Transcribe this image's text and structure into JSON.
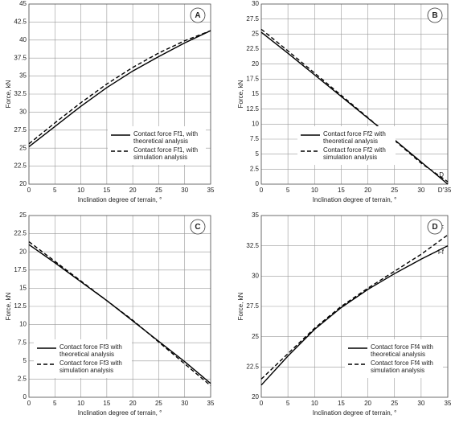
{
  "chart_data": [
    {
      "type": "line",
      "label": "A",
      "x_label": "Inclination degree of terrain, °",
      "y_label": "Force, kN",
      "x": [
        0,
        5,
        10,
        15,
        20,
        25,
        30,
        35
      ],
      "xlim": [
        0,
        35
      ],
      "xticks": [
        0,
        5,
        10,
        15,
        20,
        25,
        30,
        35
      ],
      "ylim": [
        20,
        45
      ],
      "yticks": [
        20,
        22.5,
        25,
        27.5,
        30,
        32.5,
        35,
        37.5,
        40,
        42.5,
        45
      ],
      "grid": true,
      "legend_loc": "lower right",
      "series": [
        {
          "name": "Contact force Ff1, with theoretical analysis",
          "color": "#000000",
          "linestyle": "solid",
          "values": [
            25.2,
            28.0,
            30.8,
            33.4,
            35.7,
            37.7,
            39.6,
            41.3
          ]
        },
        {
          "name": "Contact force Ff1, with simulation analysis",
          "color": "#000000",
          "linestyle": "dashed",
          "values": [
            25.6,
            28.5,
            31.3,
            33.9,
            36.2,
            38.2,
            39.9,
            41.3
          ]
        }
      ],
      "annotations": []
    },
    {
      "type": "line",
      "label": "B",
      "x_label": "Inclination degree of terrain, °",
      "y_label": "Force, kN",
      "x": [
        0,
        5,
        10,
        15,
        20,
        25,
        30,
        35
      ],
      "xlim": [
        0,
        35
      ],
      "xticks": [
        0,
        5,
        10,
        15,
        20,
        25,
        30,
        35
      ],
      "ylim": [
        0,
        30
      ],
      "yticks": [
        0,
        2.5,
        5,
        7.5,
        10,
        12.5,
        15,
        17.5,
        20,
        22.5,
        25,
        27.5,
        30
      ],
      "grid": true,
      "legend_loc": "lower center",
      "series": [
        {
          "name": "Contact force Ff2 with theoretical analysis",
          "color": "#000000",
          "linestyle": "solid",
          "values": [
            25.3,
            21.8,
            18.2,
            14.6,
            11.0,
            7.4,
            3.7,
            0
          ]
        },
        {
          "name": "Contact force Ff2 with simulation analysis",
          "color": "#000000",
          "linestyle": "dashed",
          "values": [
            25.8,
            22.2,
            18.5,
            14.8,
            11.1,
            7.3,
            3.5,
            0.4
          ]
        }
      ],
      "annotations": [
        "D′",
        "D"
      ]
    },
    {
      "type": "line",
      "label": "C",
      "x_label": "Inclination degree of terrain, °",
      "y_label": "Force, kN",
      "x": [
        0,
        5,
        10,
        15,
        20,
        25,
        30,
        35
      ],
      "xlim": [
        0,
        35
      ],
      "xticks": [
        0,
        5,
        10,
        15,
        20,
        25,
        30,
        35
      ],
      "ylim": [
        0,
        25
      ],
      "yticks": [
        0,
        2.5,
        5,
        7.5,
        10,
        12.5,
        15,
        17.5,
        20,
        22.5,
        25
      ],
      "grid": true,
      "legend_loc": "lower left",
      "series": [
        {
          "name": "Contact force Ff3 with theoretical analysis",
          "color": "#000000",
          "linestyle": "solid",
          "values": [
            21.0,
            18.5,
            15.9,
            13.3,
            10.5,
            7.7,
            4.9,
            1.9
          ]
        },
        {
          "name": "Contact force Ff3 with simulation analysis",
          "color": "#000000",
          "linestyle": "dashed",
          "values": [
            21.4,
            18.7,
            16.0,
            13.3,
            10.6,
            7.6,
            4.6,
            1.6
          ]
        }
      ],
      "annotations": []
    },
    {
      "type": "line",
      "label": "D",
      "x_label": "Inclination degree of terrain, °",
      "y_label": "Force, kN",
      "x": [
        0,
        5,
        10,
        15,
        20,
        25,
        30,
        35
      ],
      "xlim": [
        0,
        35
      ],
      "xticks": [
        0,
        5,
        10,
        15,
        20,
        25,
        30,
        35
      ],
      "ylim": [
        20,
        35
      ],
      "yticks": [
        20,
        22.5,
        25,
        27.5,
        30,
        32.5,
        35
      ],
      "grid": true,
      "legend_loc": "lower right",
      "series": [
        {
          "name": "Contact force Ff4 with theoretical analysis",
          "color": "#000000",
          "linestyle": "solid",
          "values": [
            21.0,
            23.4,
            25.6,
            27.4,
            28.9,
            30.2,
            31.4,
            32.5
          ]
        },
        {
          "name": "Contact force Ff4 with simulation analysis",
          "color": "#000000",
          "linestyle": "dashed",
          "values": [
            21.5,
            23.6,
            25.7,
            27.5,
            29.0,
            30.4,
            31.8,
            33.4
          ]
        }
      ],
      "annotations": [
        "Ff",
        "F"
      ]
    }
  ]
}
